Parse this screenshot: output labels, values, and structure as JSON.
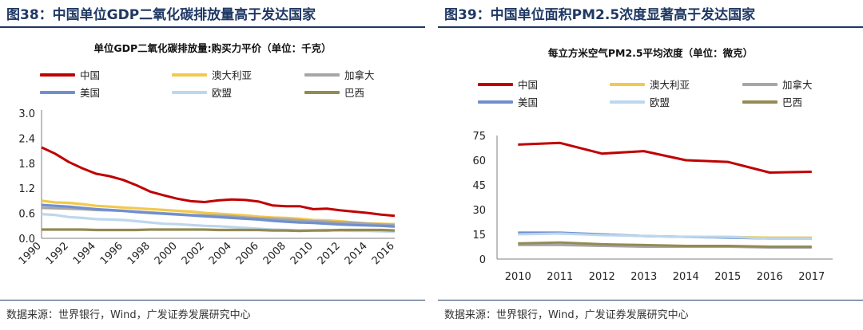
{
  "left": {
    "figure_title": "图38：中国单位GDP二氧化碳排放量高于发达国家",
    "chart_title": "单位GDP二氧化碳排放量:购买力平价（单位：千克）",
    "source": "数据来源：世界银行，Wind，广发证券发展研究中心"
  },
  "right": {
    "figure_title": "图39：中国单位面积PM2.5浓度显著高于发达国家",
    "chart_title": "每立方米空气PM2.5平均浓度（单位：微克）",
    "source": "数据来源：世界银行，Wind，广发证券发展研究中心"
  },
  "chart_data": [
    {
      "type": "line",
      "title": "单位GDP二氧化碳排放量:购买力平价（单位：千克）",
      "xlabel": "",
      "ylabel": "",
      "x": [
        1990,
        1991,
        1992,
        1993,
        1994,
        1995,
        1996,
        1997,
        1998,
        1999,
        2000,
        2001,
        2002,
        2003,
        2004,
        2005,
        2006,
        2007,
        2008,
        2009,
        2010,
        2011,
        2012,
        2013,
        2014,
        2015,
        2016
      ],
      "x_tick_labels": [
        "1990",
        "1992",
        "1994",
        "1996",
        "1998",
        "2000",
        "2002",
        "2004",
        "2006",
        "2008",
        "2010",
        "2012",
        "2014",
        "2016"
      ],
      "y_tick_labels": [
        "0.0",
        "0.6",
        "1.2",
        "1.8",
        "2.4",
        "3.0"
      ],
      "ylim": [
        0,
        3.0
      ],
      "series": [
        {
          "name": "中国",
          "color": "#c00000",
          "values": [
            2.18,
            2.03,
            1.83,
            1.68,
            1.55,
            1.49,
            1.4,
            1.27,
            1.12,
            1.03,
            0.95,
            0.89,
            0.87,
            0.91,
            0.93,
            0.92,
            0.88,
            0.79,
            0.77,
            0.77,
            0.7,
            0.71,
            0.67,
            0.64,
            0.61,
            0.57,
            0.54
          ]
        },
        {
          "name": "澳大利亚",
          "color": "#f2c94c",
          "values": [
            0.9,
            0.86,
            0.85,
            0.82,
            0.78,
            0.76,
            0.74,
            0.72,
            0.7,
            0.68,
            0.66,
            0.64,
            0.61,
            0.59,
            0.57,
            0.55,
            0.52,
            0.5,
            0.49,
            0.47,
            0.44,
            0.43,
            0.41,
            0.38,
            0.36,
            0.35,
            0.34
          ]
        },
        {
          "name": "加拿大",
          "color": "#a6a6a6",
          "values": [
            0.73,
            0.72,
            0.71,
            0.7,
            0.68,
            0.67,
            0.66,
            0.64,
            0.62,
            0.6,
            0.58,
            0.56,
            0.55,
            0.54,
            0.53,
            0.5,
            0.48,
            0.47,
            0.45,
            0.43,
            0.41,
            0.4,
            0.38,
            0.37,
            0.35,
            0.33,
            0.32
          ]
        },
        {
          "name": "美国",
          "color": "#6f8fcf",
          "values": [
            0.8,
            0.78,
            0.76,
            0.73,
            0.7,
            0.68,
            0.66,
            0.63,
            0.61,
            0.59,
            0.57,
            0.55,
            0.53,
            0.51,
            0.49,
            0.47,
            0.45,
            0.42,
            0.4,
            0.38,
            0.37,
            0.35,
            0.33,
            0.32,
            0.31,
            0.3,
            0.28
          ]
        },
        {
          "name": "欧盟",
          "color": "#bdd7ee",
          "values": [
            0.58,
            0.56,
            0.51,
            0.49,
            0.46,
            0.45,
            0.44,
            0.41,
            0.38,
            0.35,
            0.34,
            0.32,
            0.3,
            0.29,
            0.27,
            0.25,
            0.23,
            0.21,
            0.2,
            0.19,
            0.19,
            0.2,
            0.19,
            0.18,
            0.18,
            0.17,
            0.16
          ]
        },
        {
          "name": "巴西",
          "color": "#948a54",
          "values": [
            0.21,
            0.21,
            0.21,
            0.21,
            0.2,
            0.2,
            0.2,
            0.2,
            0.21,
            0.21,
            0.21,
            0.21,
            0.21,
            0.2,
            0.2,
            0.2,
            0.2,
            0.19,
            0.19,
            0.18,
            0.19,
            0.19,
            0.2,
            0.2,
            0.2,
            0.2,
            0.19
          ]
        }
      ]
    },
    {
      "type": "line",
      "title": "每立方米空气PM2.5平均浓度（单位：微克）",
      "xlabel": "",
      "ylabel": "",
      "x": [
        2010,
        2011,
        2012,
        2013,
        2014,
        2015,
        2016,
        2017
      ],
      "x_tick_labels": [
        "2010",
        "2011",
        "2012",
        "2013",
        "2014",
        "2015",
        "2016",
        "2017"
      ],
      "y_tick_labels": [
        "0",
        "15",
        "30",
        "45",
        "60",
        "75"
      ],
      "ylim": [
        0,
        75
      ],
      "series": [
        {
          "name": "中国",
          "color": "#c00000",
          "values": [
            69.5,
            70.5,
            64,
            65.5,
            60,
            59,
            52.5,
            53
          ]
        },
        {
          "name": "澳大利亚",
          "color": "#f2c94c",
          "values": [
            15.5,
            15.5,
            15,
            14,
            13.5,
            13.5,
            13,
            13
          ]
        },
        {
          "name": "加拿大",
          "color": "#a6a6a6",
          "values": [
            8.5,
            8.5,
            8,
            7.5,
            7.5,
            7.5,
            7,
            7
          ]
        },
        {
          "name": "美国",
          "color": "#6f8fcf",
          "values": [
            16,
            16,
            15,
            14,
            13.5,
            13,
            12.5,
            12.5
          ]
        },
        {
          "name": "欧盟",
          "color": "#bdd7ee",
          "values": [
            15,
            15.5,
            14.5,
            14,
            13.5,
            13.5,
            12.5,
            12.5
          ]
        },
        {
          "name": "巴西",
          "color": "#948a54",
          "values": [
            9.5,
            10,
            9,
            8.5,
            8,
            8,
            7.5,
            7.5
          ]
        }
      ]
    }
  ]
}
